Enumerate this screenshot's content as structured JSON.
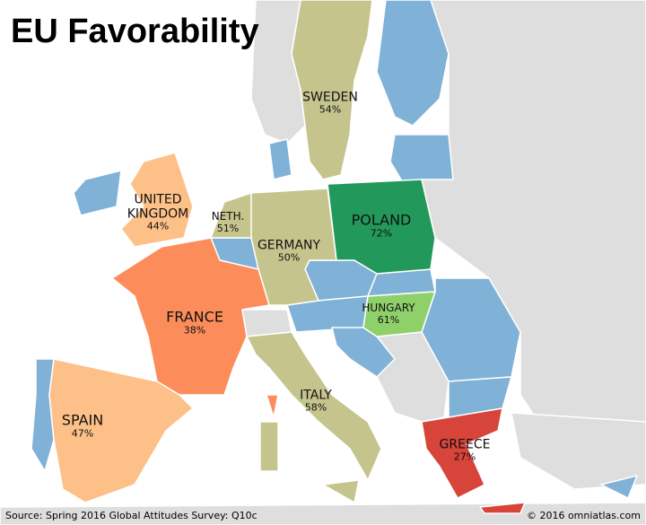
{
  "title": "EU Favorability",
  "countries": [
    {
      "name": "SWEDEN",
      "label": "54%",
      "color": "#c6c48d"
    },
    {
      "name": "UNITED KINGDOM",
      "label": "44%",
      "color": "#fdc088"
    },
    {
      "name": "NETH.",
      "label": "51%",
      "color": "#c6c48d"
    },
    {
      "name": "GERMANY",
      "label": "50%",
      "color": "#c6c48d"
    },
    {
      "name": "POLAND",
      "label": "72%",
      "color": "#22995a"
    },
    {
      "name": "FRANCE",
      "label": "38%",
      "color": "#fc8d5a"
    },
    {
      "name": "HUNGARY",
      "label": "61%",
      "color": "#90d06b"
    },
    {
      "name": "SPAIN",
      "label": "47%",
      "color": "#fdc088"
    },
    {
      "name": "ITALY",
      "label": "58%",
      "color": "#c6c48d"
    },
    {
      "name": "GREECE",
      "label": "27%",
      "color": "#d6443a"
    }
  ],
  "source": "Source: Spring 2016 Global Attitudes Survey: Q10c",
  "credit": "© 2016 omniatlas.com"
}
